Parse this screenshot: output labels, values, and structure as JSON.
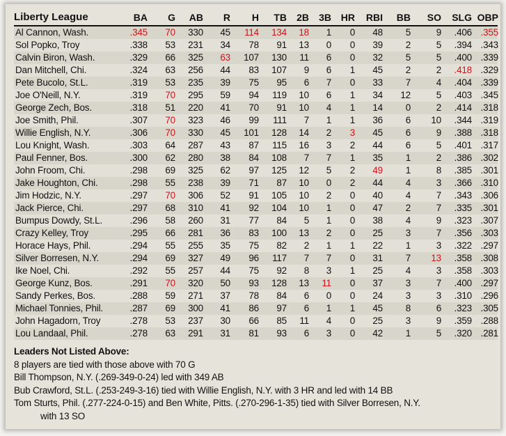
{
  "title": "Liberty League",
  "columns": [
    "BA",
    "G",
    "AB",
    "R",
    "H",
    "TB",
    "2B",
    "3B",
    "HR",
    "RBI",
    "BB",
    "SO",
    "SLG",
    "OBP"
  ],
  "highlight_color": "#c8161d",
  "rows": [
    {
      "name": "Al Cannon, Wash.",
      "stats": [
        ".345",
        "70",
        "330",
        "45",
        "114",
        "134",
        "18",
        "1",
        "0",
        "48",
        "5",
        "9",
        ".406",
        ".355"
      ],
      "highlight": [
        "BA",
        "G",
        "H",
        "TB",
        "2B",
        "OBP"
      ]
    },
    {
      "name": "Sol Popko, Troy",
      "stats": [
        ".338",
        "53",
        "231",
        "34",
        "78",
        "91",
        "13",
        "0",
        "0",
        "39",
        "2",
        "5",
        ".394",
        ".343"
      ],
      "highlight": []
    },
    {
      "name": "Calvin Biron, Wash.",
      "stats": [
        ".329",
        "66",
        "325",
        "63",
        "107",
        "130",
        "11",
        "6",
        "0",
        "32",
        "5",
        "5",
        ".400",
        ".339"
      ],
      "highlight": [
        "R"
      ]
    },
    {
      "name": "Dan Mitchell, Chi.",
      "stats": [
        ".324",
        "63",
        "256",
        "44",
        "83",
        "107",
        "9",
        "6",
        "1",
        "45",
        "2",
        "2",
        ".418",
        ".329"
      ],
      "highlight": [
        "SLG"
      ]
    },
    {
      "name": "Pete Bucolo, St.L.",
      "stats": [
        ".319",
        "53",
        "235",
        "39",
        "75",
        "95",
        "6",
        "7",
        "0",
        "33",
        "7",
        "4",
        ".404",
        ".339"
      ],
      "highlight": []
    },
    {
      "name": "Joe O'Neill, N.Y.",
      "stats": [
        ".319",
        "70",
        "295",
        "59",
        "94",
        "119",
        "10",
        "6",
        "1",
        "34",
        "12",
        "5",
        ".403",
        ".345"
      ],
      "highlight": [
        "G"
      ]
    },
    {
      "name": "George Zech, Bos.",
      "stats": [
        ".318",
        "51",
        "220",
        "41",
        "70",
        "91",
        "10",
        "4",
        "1",
        "14",
        "0",
        "2",
        ".414",
        ".318"
      ],
      "highlight": []
    },
    {
      "name": "Joe Smith, Phil.",
      "stats": [
        ".307",
        "70",
        "323",
        "46",
        "99",
        "111",
        "7",
        "1",
        "1",
        "36",
        "6",
        "10",
        ".344",
        ".319"
      ],
      "highlight": [
        "G"
      ]
    },
    {
      "name": "Willie English, N.Y.",
      "stats": [
        ".306",
        "70",
        "330",
        "45",
        "101",
        "128",
        "14",
        "2",
        "3",
        "45",
        "6",
        "9",
        ".388",
        ".318"
      ],
      "highlight": [
        "G",
        "HR"
      ]
    },
    {
      "name": "Lou Knight, Wash.",
      "stats": [
        ".303",
        "64",
        "287",
        "43",
        "87",
        "115",
        "16",
        "3",
        "2",
        "44",
        "6",
        "5",
        ".401",
        ".317"
      ],
      "highlight": []
    },
    {
      "name": "Paul Fenner, Bos.",
      "stats": [
        ".300",
        "62",
        "280",
        "38",
        "84",
        "108",
        "7",
        "7",
        "1",
        "35",
        "1",
        "2",
        ".386",
        ".302"
      ],
      "highlight": []
    },
    {
      "name": "John Froom, Chi.",
      "stats": [
        ".298",
        "69",
        "325",
        "62",
        "97",
        "125",
        "12",
        "5",
        "2",
        "49",
        "1",
        "8",
        ".385",
        ".301"
      ],
      "highlight": [
        "RBI"
      ]
    },
    {
      "name": "Jake Houghton, Chi.",
      "stats": [
        ".298",
        "55",
        "238",
        "39",
        "71",
        "87",
        "10",
        "0",
        "2",
        "44",
        "4",
        "3",
        ".366",
        ".310"
      ],
      "highlight": []
    },
    {
      "name": "Jim Hodzic, N.Y.",
      "stats": [
        ".297",
        "70",
        "306",
        "52",
        "91",
        "105",
        "10",
        "2",
        "0",
        "40",
        "4",
        "7",
        ".343",
        ".306"
      ],
      "highlight": [
        "G"
      ]
    },
    {
      "name": "Jack Pierce, Chi.",
      "stats": [
        ".297",
        "68",
        "310",
        "41",
        "92",
        "104",
        "10",
        "1",
        "0",
        "47",
        "2",
        "7",
        ".335",
        ".301"
      ],
      "highlight": []
    },
    {
      "name": "Bumpus Dowdy, St.L.",
      "stats": [
        ".296",
        "58",
        "260",
        "31",
        "77",
        "84",
        "5",
        "1",
        "0",
        "38",
        "4",
        "9",
        ".323",
        ".307"
      ],
      "highlight": []
    },
    {
      "name": "Crazy Kelley, Troy",
      "stats": [
        ".295",
        "66",
        "281",
        "36",
        "83",
        "100",
        "13",
        "2",
        "0",
        "25",
        "3",
        "7",
        ".356",
        ".303"
      ],
      "highlight": []
    },
    {
      "name": "Horace Hays, Phil.",
      "stats": [
        ".294",
        "55",
        "255",
        "35",
        "75",
        "82",
        "2",
        "1",
        "1",
        "22",
        "1",
        "3",
        ".322",
        ".297"
      ],
      "highlight": []
    },
    {
      "name": "Silver Borresen, N.Y.",
      "stats": [
        ".294",
        "69",
        "327",
        "49",
        "96",
        "117",
        "7",
        "7",
        "0",
        "31",
        "7",
        "13",
        ".358",
        ".308"
      ],
      "highlight": [
        "SO"
      ]
    },
    {
      "name": "Ike Noel, Chi.",
      "stats": [
        ".292",
        "55",
        "257",
        "44",
        "75",
        "92",
        "8",
        "3",
        "1",
        "25",
        "4",
        "3",
        ".358",
        ".303"
      ],
      "highlight": []
    },
    {
      "name": "George Kunz, Bos.",
      "stats": [
        ".291",
        "70",
        "320",
        "50",
        "93",
        "128",
        "13",
        "11",
        "0",
        "37",
        "3",
        "7",
        ".400",
        ".297"
      ],
      "highlight": [
        "G",
        "3B"
      ]
    },
    {
      "name": "Sandy Perkes, Bos.",
      "stats": [
        ".288",
        "59",
        "271",
        "37",
        "78",
        "84",
        "6",
        "0",
        "0",
        "24",
        "3",
        "3",
        ".310",
        ".296"
      ],
      "highlight": []
    },
    {
      "name": "Michael Tonnies, Phil.",
      "stats": [
        ".287",
        "69",
        "300",
        "41",
        "86",
        "97",
        "6",
        "1",
        "1",
        "45",
        "8",
        "6",
        ".323",
        ".305"
      ],
      "highlight": []
    },
    {
      "name": "John Hagadorn, Troy",
      "stats": [
        ".278",
        "53",
        "237",
        "30",
        "66",
        "85",
        "11",
        "4",
        "0",
        "25",
        "3",
        "9",
        ".359",
        ".288"
      ],
      "highlight": []
    },
    {
      "name": "Lou Landaal, Phil.",
      "stats": [
        ".278",
        "63",
        "291",
        "31",
        "81",
        "93",
        "6",
        "3",
        "0",
        "42",
        "1",
        "5",
        ".320",
        ".281"
      ],
      "highlight": []
    }
  ],
  "footer": {
    "heading": "Leaders Not Listed Above:",
    "lines": [
      "8 players are tied with those above with 70 G",
      "Bill Thompson, N.Y. (.269-349-0-24) led with 349 AB",
      "Bub Crawford, St.L. (.253-249-3-16) tied with Willie English, N.Y. with 3 HR and led with 14 BB",
      "Tom Sturts, Phil. (.277-224-0-15) and Ben White, Pitts. (.270-296-1-35) tied with Silver Borresen, N.Y.",
      "with 13 SO"
    ]
  }
}
